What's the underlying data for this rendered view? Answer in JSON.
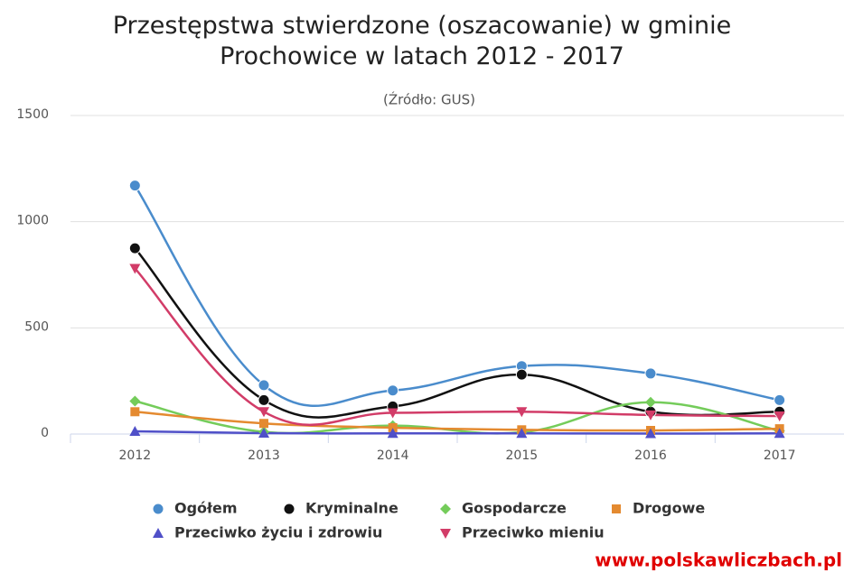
{
  "chart_data": {
    "type": "line",
    "smooth": true,
    "title": "Przestępstwa stwierdzone (oszacowanie) w gminie Prochowice w latach 2012 - 2017",
    "subtitle": "(Źródło: GUS)",
    "footer": "www.polskawliczbach.pl",
    "categories": [
      "2012",
      "2013",
      "2014",
      "2015",
      "2016",
      "2017"
    ],
    "ylim": [
      0,
      1500
    ],
    "yticks": [
      0,
      500,
      1000,
      1500
    ],
    "grid": true,
    "series": [
      {
        "name": "Ogółem",
        "color": "#4a8ccc",
        "symbol": "circle",
        "values": [
          1170,
          230,
          205,
          320,
          285,
          160
        ]
      },
      {
        "name": "Kryminalne",
        "color": "#111111",
        "symbol": "circle",
        "values": [
          875,
          160,
          130,
          280,
          105,
          105
        ]
      },
      {
        "name": "Gospodarcze",
        "color": "#74cc5a",
        "symbol": "diamond",
        "values": [
          155,
          10,
          40,
          8,
          150,
          15
        ]
      },
      {
        "name": "Drogowe",
        "color": "#e48a30",
        "symbol": "square",
        "values": [
          105,
          50,
          30,
          20,
          17,
          25
        ]
      },
      {
        "name": "Przeciwko życiu i zdrowiu",
        "color": "#5050c8",
        "symbol": "triangle",
        "values": [
          13,
          4,
          3,
          3,
          2,
          3
        ]
      },
      {
        "name": "Przeciwko mieniu",
        "color": "#d23c68",
        "symbol": "triangle-down",
        "values": [
          780,
          105,
          100,
          105,
          90,
          85
        ]
      }
    ]
  }
}
